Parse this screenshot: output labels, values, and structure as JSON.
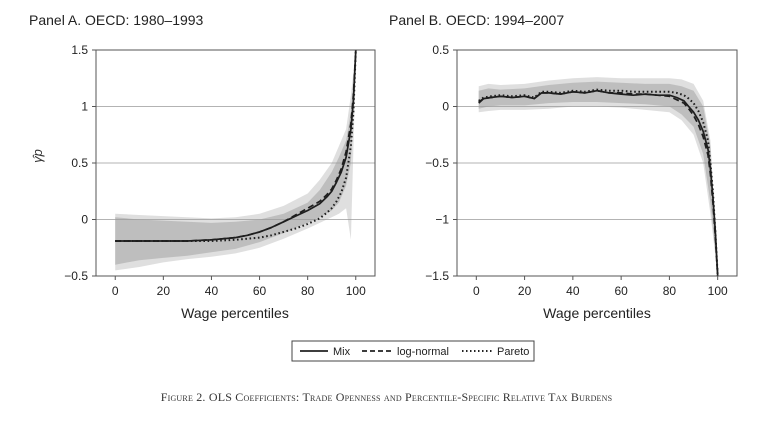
{
  "figure": {
    "caption": "Figure 2. OLS Coefficients: Trade Openness and Percentile-Specific Relative Tax Burdens"
  },
  "legend": {
    "entries": [
      {
        "label": "Mix",
        "style": "solid"
      },
      {
        "label": "log-normal",
        "style": "dashed"
      },
      {
        "label": "Pareto",
        "style": "dotted"
      }
    ]
  },
  "chart_data": [
    {
      "type": "line",
      "title": "Panel A. OECD: 1980–1993",
      "xlabel": "Wage percentiles",
      "ylabel": "γ̂p",
      "xlim": [
        -8,
        108
      ],
      "ylim": [
        -0.5,
        1.5
      ],
      "xticks": [
        0,
        20,
        40,
        60,
        80,
        100
      ],
      "xtick_labels": [
        "0",
        "20",
        "40",
        "60",
        "80",
        "100"
      ],
      "yticks": [
        -0.5,
        0,
        0.5,
        1,
        1.5
      ],
      "ytick_labels": [
        "−0.5",
        "0",
        "0.5",
        "1",
        "1.5"
      ],
      "grid": "horizontal",
      "series": [
        {
          "name": "Mix",
          "style": "solid",
          "x": [
            0,
            10,
            20,
            30,
            40,
            50,
            55,
            60,
            65,
            70,
            75,
            80,
            85,
            88,
            90,
            92,
            94,
            96,
            98,
            99,
            100
          ],
          "y": [
            -0.19,
            -0.19,
            -0.19,
            -0.19,
            -0.18,
            -0.16,
            -0.14,
            -0.11,
            -0.07,
            -0.02,
            0.03,
            0.08,
            0.14,
            0.2,
            0.25,
            0.33,
            0.42,
            0.55,
            0.8,
            1.05,
            1.5
          ]
        },
        {
          "name": "log-normal",
          "style": "dashed",
          "x": [
            0,
            10,
            20,
            30,
            40,
            50,
            55,
            60,
            65,
            70,
            75,
            80,
            85,
            88,
            90,
            92,
            94,
            96,
            98,
            99,
            100
          ],
          "y": [
            -0.19,
            -0.19,
            -0.19,
            -0.19,
            -0.18,
            -0.16,
            -0.14,
            -0.11,
            -0.07,
            -0.02,
            0.04,
            0.1,
            0.16,
            0.22,
            0.27,
            0.35,
            0.45,
            0.6,
            0.85,
            1.1,
            1.5
          ]
        },
        {
          "name": "Pareto",
          "style": "dotted",
          "x": [
            0,
            10,
            20,
            30,
            40,
            50,
            55,
            60,
            65,
            70,
            75,
            80,
            85,
            88,
            90,
            92,
            94,
            96,
            98,
            99,
            100
          ],
          "y": [
            -0.19,
            -0.19,
            -0.19,
            -0.19,
            -0.19,
            -0.18,
            -0.17,
            -0.16,
            -0.14,
            -0.11,
            -0.08,
            -0.04,
            0.01,
            0.06,
            0.1,
            0.16,
            0.24,
            0.37,
            0.65,
            0.95,
            1.5
          ]
        }
      ],
      "bands": [
        {
          "name": "outer-ci",
          "x": [
            0,
            10,
            20,
            30,
            40,
            50,
            60,
            70,
            80,
            85,
            90,
            93,
            96,
            98,
            100
          ],
          "upper": [
            0.05,
            0.04,
            0.03,
            0.02,
            0.01,
            0.02,
            0.05,
            0.12,
            0.23,
            0.35,
            0.5,
            0.65,
            0.8,
            1.1,
            1.5
          ],
          "lower": [
            -0.45,
            -0.42,
            -0.38,
            -0.35,
            -0.33,
            -0.3,
            -0.25,
            -0.17,
            -0.08,
            -0.03,
            0.02,
            0.05,
            0.1,
            -0.18,
            1.4
          ]
        },
        {
          "name": "inner-ci",
          "x": [
            0,
            10,
            20,
            30,
            40,
            50,
            60,
            70,
            80,
            85,
            90,
            93,
            96,
            98,
            100
          ],
          "upper": [
            0.02,
            0.0,
            -0.01,
            -0.02,
            -0.03,
            -0.02,
            0.0,
            0.05,
            0.15,
            0.26,
            0.42,
            0.55,
            0.7,
            0.95,
            1.5
          ],
          "lower": [
            -0.4,
            -0.36,
            -0.34,
            -0.32,
            -0.29,
            -0.26,
            -0.2,
            -0.12,
            -0.03,
            0.02,
            0.08,
            0.15,
            0.3,
            0.5,
            1.45
          ]
        }
      ]
    },
    {
      "type": "line",
      "title": "Panel B. OECD: 1994–2007",
      "xlabel": "Wage percentiles",
      "ylabel": "",
      "xlim": [
        -8,
        108
      ],
      "ylim": [
        -1.5,
        0.5
      ],
      "xticks": [
        0,
        20,
        40,
        60,
        80,
        100
      ],
      "xtick_labels": [
        "0",
        "20",
        "40",
        "60",
        "80",
        "100"
      ],
      "yticks": [
        -1.5,
        -1,
        -0.5,
        0,
        0.5
      ],
      "ytick_labels": [
        "−1.5",
        "−1",
        "−0.5",
        "0",
        "0.5"
      ],
      "grid": "horizontal",
      "series": [
        {
          "name": "Mix",
          "style": "solid",
          "x": [
            1,
            3,
            6,
            10,
            15,
            20,
            24,
            27,
            30,
            35,
            40,
            45,
            50,
            55,
            60,
            65,
            70,
            75,
            80,
            83,
            86,
            88,
            90,
            92,
            94,
            96,
            97,
            98,
            99,
            100
          ],
          "y": [
            0.03,
            0.07,
            0.08,
            0.09,
            0.08,
            0.09,
            0.07,
            0.12,
            0.12,
            0.11,
            0.13,
            0.12,
            0.14,
            0.12,
            0.11,
            0.1,
            0.11,
            0.1,
            0.1,
            0.08,
            0.05,
            0.0,
            -0.05,
            -0.12,
            -0.22,
            -0.38,
            -0.55,
            -0.8,
            -1.1,
            -1.5
          ]
        },
        {
          "name": "log-normal",
          "style": "dashed",
          "x": [
            1,
            3,
            6,
            10,
            15,
            20,
            24,
            27,
            30,
            35,
            40,
            45,
            50,
            55,
            60,
            65,
            70,
            75,
            80,
            83,
            86,
            88,
            90,
            92,
            94,
            96,
            97,
            98,
            99,
            100
          ],
          "y": [
            0.04,
            0.07,
            0.08,
            0.09,
            0.08,
            0.09,
            0.07,
            0.12,
            0.12,
            0.11,
            0.13,
            0.12,
            0.14,
            0.12,
            0.12,
            0.11,
            0.11,
            0.1,
            0.09,
            0.06,
            0.03,
            -0.02,
            -0.08,
            -0.16,
            -0.27,
            -0.43,
            -0.6,
            -0.85,
            -1.15,
            -1.5
          ]
        },
        {
          "name": "Pareto",
          "style": "dotted",
          "x": [
            1,
            3,
            6,
            10,
            15,
            20,
            24,
            27,
            30,
            35,
            40,
            45,
            50,
            55,
            60,
            65,
            70,
            75,
            80,
            83,
            86,
            88,
            90,
            92,
            94,
            96,
            97,
            98,
            99,
            100
          ],
          "y": [
            0.05,
            0.08,
            0.09,
            0.1,
            0.09,
            0.1,
            0.08,
            0.13,
            0.13,
            0.12,
            0.14,
            0.13,
            0.15,
            0.14,
            0.14,
            0.13,
            0.13,
            0.13,
            0.13,
            0.12,
            0.1,
            0.07,
            0.03,
            -0.04,
            -0.14,
            -0.3,
            -0.5,
            -0.75,
            -1.1,
            -1.5
          ]
        }
      ],
      "bands": [
        {
          "name": "outer-ci",
          "x": [
            1,
            5,
            10,
            20,
            30,
            40,
            50,
            60,
            70,
            80,
            85,
            90,
            94,
            97,
            100
          ],
          "upper": [
            0.18,
            0.2,
            0.19,
            0.2,
            0.23,
            0.25,
            0.26,
            0.25,
            0.25,
            0.25,
            0.24,
            0.2,
            0.05,
            -0.3,
            -1.45
          ],
          "lower": [
            -0.05,
            -0.04,
            -0.03,
            -0.03,
            -0.02,
            0.0,
            0.0,
            -0.01,
            -0.03,
            -0.05,
            -0.12,
            -0.25,
            -0.5,
            -0.95,
            -1.5
          ]
        },
        {
          "name": "inner-ci",
          "x": [
            1,
            5,
            10,
            20,
            30,
            40,
            50,
            60,
            70,
            80,
            85,
            90,
            94,
            97,
            100
          ],
          "upper": [
            0.14,
            0.16,
            0.15,
            0.16,
            0.19,
            0.21,
            0.22,
            0.21,
            0.2,
            0.2,
            0.18,
            0.14,
            0.0,
            -0.35,
            -1.45
          ],
          "lower": [
            -0.02,
            0.0,
            0.01,
            0.01,
            0.03,
            0.04,
            0.04,
            0.03,
            0.02,
            0.0,
            -0.07,
            -0.18,
            -0.42,
            -0.85,
            -1.5
          ]
        }
      ]
    }
  ]
}
